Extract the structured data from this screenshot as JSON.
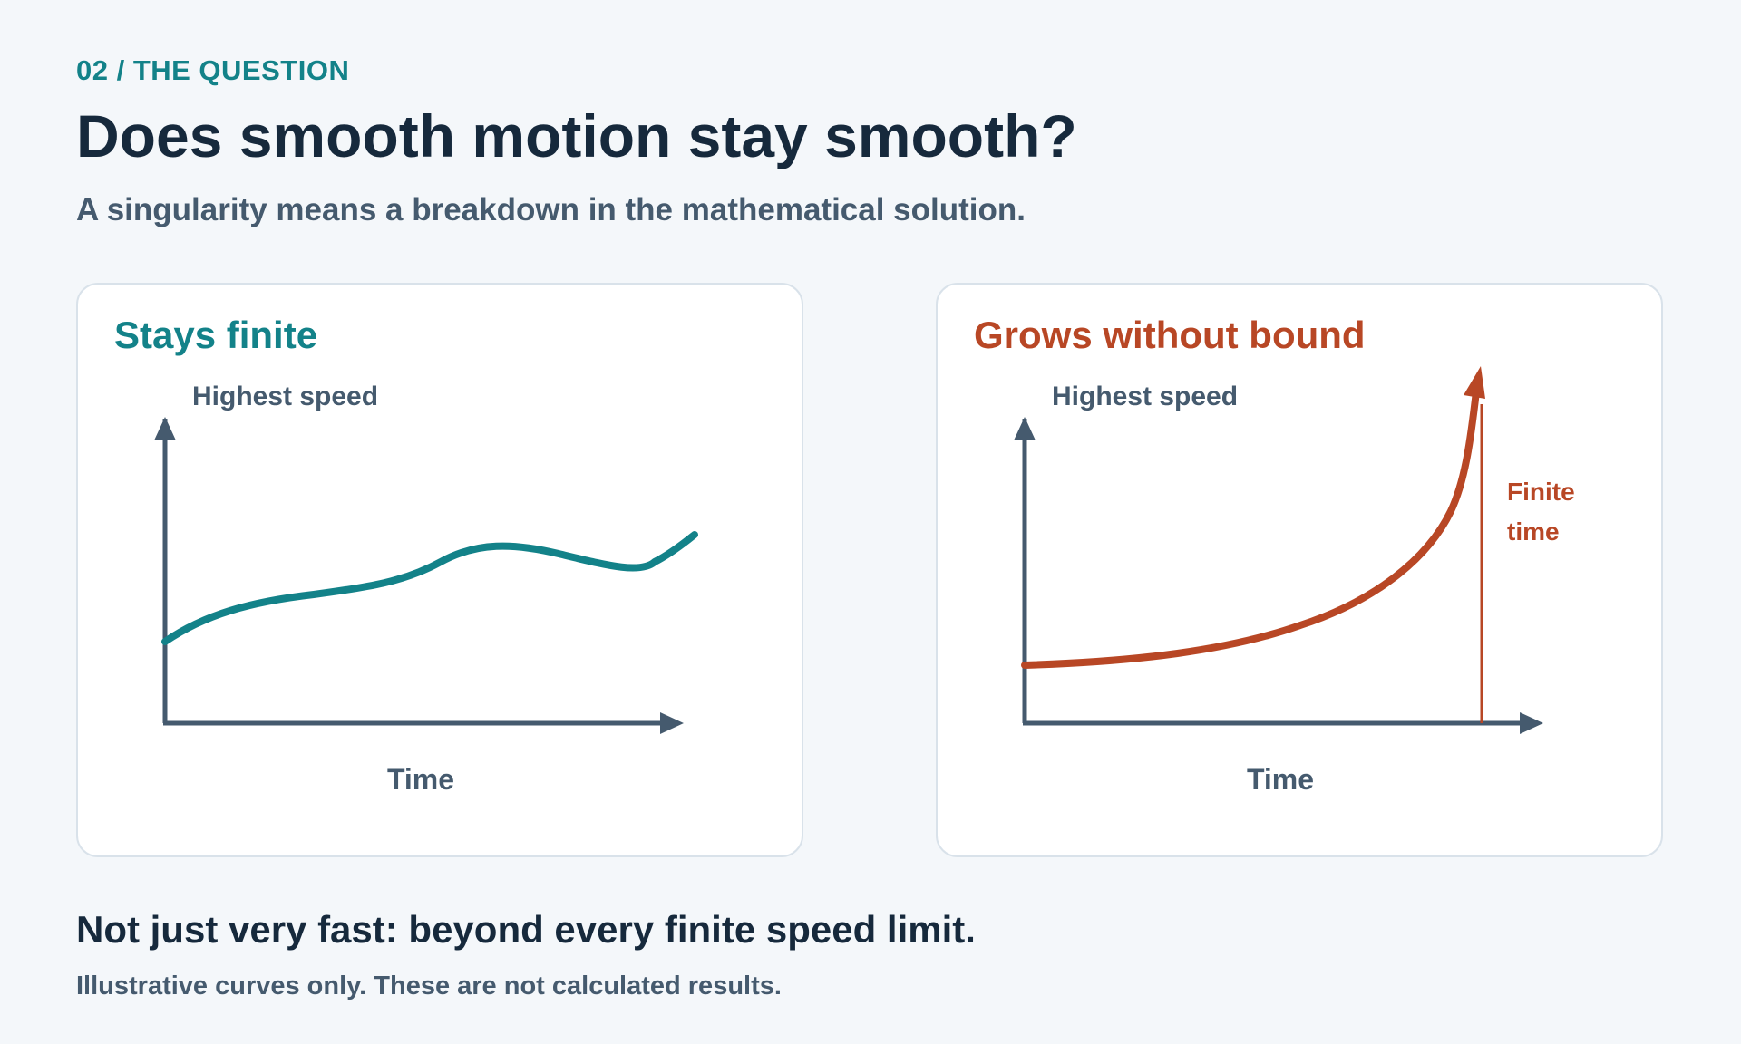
{
  "header": {
    "eyebrow": "02 / THE QUESTION",
    "title": "Does smooth motion stay smooth?",
    "subtitle": "A singularity means a breakdown in the mathematical solution."
  },
  "panels": [
    {
      "title": "Stays finite",
      "y_axis_label": "Highest speed",
      "x_axis_label": "Time",
      "accent_color": "#138289"
    },
    {
      "title": "Grows without bound",
      "y_axis_label": "Highest speed",
      "x_axis_label": "Time",
      "marker_label_line1": "Finite",
      "marker_label_line2": "time",
      "accent_color": "#b84725"
    }
  ],
  "footer": {
    "main": "Not just very fast: beyond every finite speed limit.",
    "note": "Illustrative curves only. These are not calculated results."
  },
  "colors": {
    "background": "#f4f7fa",
    "axis": "#455a6e",
    "title": "#16293c",
    "teal": "#138289",
    "rust": "#b84725"
  }
}
